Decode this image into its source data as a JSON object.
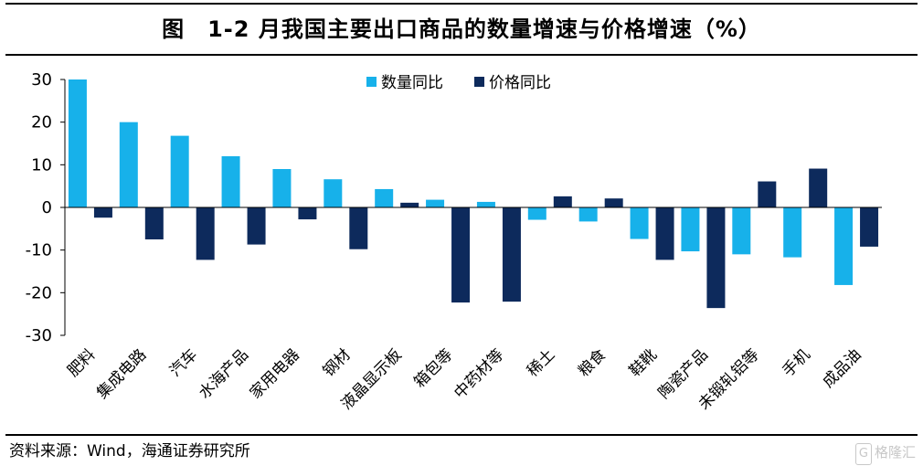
{
  "header": {
    "title": "图　1-2 月我国主要出口商品的数量增速与价格增速（%）"
  },
  "footer": {
    "source": "资料来源：Wind，海通证券研究所",
    "watermark_box": "G",
    "watermark_text": "格隆汇"
  },
  "colors": {
    "quantity": "#17b1ea",
    "price": "#0d2a5c",
    "axis": "#000000"
  },
  "chart_data": {
    "type": "bar",
    "title": "图　1-2 月我国主要出口商品的数量增速与价格增速（%）",
    "categories": [
      "肥料",
      "集成电路",
      "汽车",
      "水海产品",
      "家用电器",
      "钢材",
      "液晶显示板",
      "箱包等",
      "中药材等",
      "稀土",
      "粮食",
      "鞋靴",
      "陶瓷产品",
      "未锻轧铝等",
      "手机",
      "成品油"
    ],
    "series": [
      {
        "name": "数量同比",
        "values": [
          30,
          20,
          16.8,
          12,
          9,
          6.6,
          4.3,
          1.8,
          1.3,
          -2.9,
          -3.3,
          -7.4,
          -10.3,
          -11,
          -11.7,
          -18.2
        ]
      },
      {
        "name": "价格同比",
        "values": [
          -2.4,
          -7.5,
          -12.3,
          -8.7,
          -2.8,
          -9.8,
          1.1,
          -22.3,
          -22.1,
          2.6,
          2.1,
          -12.3,
          -23.6,
          6.1,
          9.1,
          -9.2
        ]
      }
    ],
    "ylim": [
      -30,
      30
    ],
    "yticks": [
      30,
      20,
      10,
      0,
      -10,
      -20,
      -30
    ],
    "xlabel": "",
    "ylabel": "",
    "legend_position": "top-center",
    "grid": false
  }
}
